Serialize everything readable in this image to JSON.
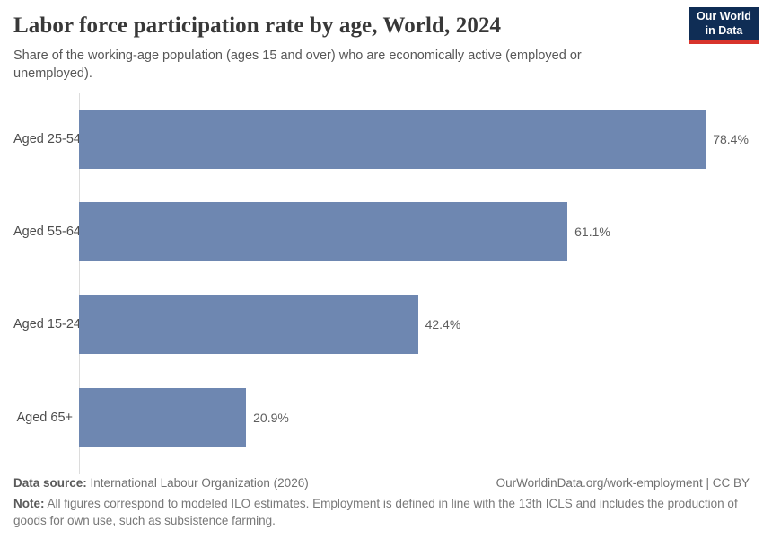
{
  "header": {
    "title": "Labor force participation rate by age, World, 2024",
    "subtitle": "Share of the working-age population (ages 15 and over) who are economically active (employed or unemployed).",
    "logo": {
      "line1": "Our World",
      "line2": "in Data"
    }
  },
  "chart_data": {
    "type": "bar",
    "orientation": "horizontal",
    "title": "Labor force participation rate by age, World, 2024",
    "categories": [
      "Aged 25-54",
      "Aged 55-64",
      "Aged 15-24",
      "Aged 65+"
    ],
    "values": [
      78.4,
      61.1,
      42.4,
      20.9
    ],
    "value_labels": [
      "78.4%",
      "61.1%",
      "42.4%",
      "20.9%"
    ],
    "xlabel": "",
    "ylabel": "",
    "xlim": [
      0,
      85
    ],
    "grid": false,
    "legend": false,
    "bar_color": "#6e87b1",
    "unit": "%"
  },
  "footer": {
    "data_source_label": "Data source:",
    "data_source": "International Labour Organization (2026)",
    "link": "OurWorldinData.org/work-employment | CC BY",
    "note_label": "Note:",
    "note": "All figures correspond to modeled ILO estimates. Employment is defined in line with the 13th ICLS and includes the production of goods for own use, such as subsistence farming."
  },
  "colors": {
    "bar": "#6e87b1",
    "logo_navy": "#0f2d55",
    "logo_red": "#d8342c",
    "axis_line": "#dcdcdc"
  }
}
